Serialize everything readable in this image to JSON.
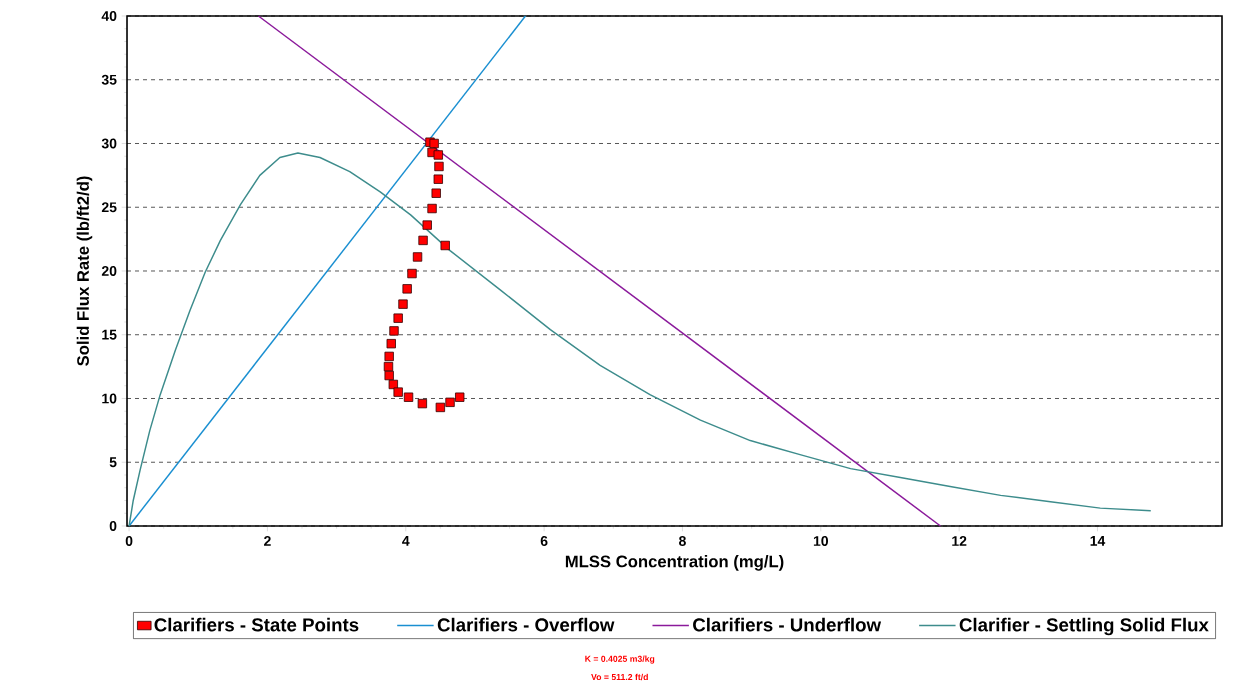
{
  "chart_data": {
    "type": "line",
    "xlabel": "MLSS Concentration (mg/L)",
    "ylabel": "Solid Flux Rate (lb/ft2/d)",
    "xlim": [
      -0.03,
      15.8
    ],
    "ylim": [
      0,
      40
    ],
    "xticks": [
      0,
      2,
      4,
      6,
      8,
      10,
      12,
      14
    ],
    "yticks": [
      0,
      5,
      10,
      15,
      20,
      25,
      30,
      35,
      40
    ],
    "grid": "y",
    "legend": "bottom",
    "series": [
      {
        "name": "Clarifiers - State Points",
        "type": "scatter",
        "marker": "square",
        "color": "#ff0000",
        "x": [
          4.35,
          4.41,
          4.38,
          4.47,
          4.48,
          4.47,
          4.44,
          4.38,
          4.31,
          4.25,
          4.17,
          4.09,
          4.02,
          3.96,
          3.89,
          3.83,
          3.79,
          3.76,
          3.75,
          3.76,
          3.82,
          3.89,
          4.04,
          4.24,
          4.5,
          4.64,
          4.78,
          4.57
        ],
        "values": [
          30.1,
          30.0,
          29.3,
          29.1,
          28.2,
          27.2,
          26.1,
          24.9,
          23.6,
          22.4,
          21.1,
          19.8,
          18.6,
          17.4,
          16.3,
          15.3,
          14.3,
          13.3,
          12.5,
          11.8,
          11.1,
          10.5,
          10.1,
          9.6,
          9.3,
          9.7,
          10.1,
          22.0
        ]
      },
      {
        "name": "Clarifiers - Overflow",
        "type": "line",
        "color": "#1a8fd1",
        "x": [
          0,
          5.73
        ],
        "values": [
          0,
          40
        ]
      },
      {
        "name": "Clarifiers - Underflow",
        "type": "line",
        "color": "#8b1a9b",
        "x": [
          1.87,
          11.73
        ],
        "values": [
          40,
          0
        ]
      },
      {
        "name": "Clarifier - Settling Solid Flux",
        "type": "line",
        "color": "#3d8c8c",
        "x": [
          0,
          0.06,
          0.16,
          0.3,
          0.45,
          0.67,
          0.88,
          1.1,
          1.32,
          1.61,
          1.89,
          2.18,
          2.44,
          2.76,
          3.19,
          3.63,
          4.07,
          4.64,
          5.37,
          6.09,
          6.81,
          7.53,
          8.26,
          8.98,
          9.7,
          10.43,
          11.15,
          11.87,
          12.6,
          13.32,
          14.04,
          14.77
        ],
        "values": [
          0,
          2.0,
          4.4,
          7.5,
          10.3,
          13.8,
          16.9,
          19.9,
          22.4,
          25.2,
          27.5,
          28.9,
          29.25,
          28.9,
          27.8,
          26.2,
          24.4,
          21.6,
          18.5,
          15.4,
          12.6,
          10.3,
          8.3,
          6.7,
          5.6,
          4.5,
          3.8,
          3.1,
          2.4,
          1.9,
          1.4,
          1.2
        ]
      }
    ],
    "annotations": [
      "K  = 0.4025 m3/kg",
      "Vo = 511.2 ft/d"
    ]
  }
}
